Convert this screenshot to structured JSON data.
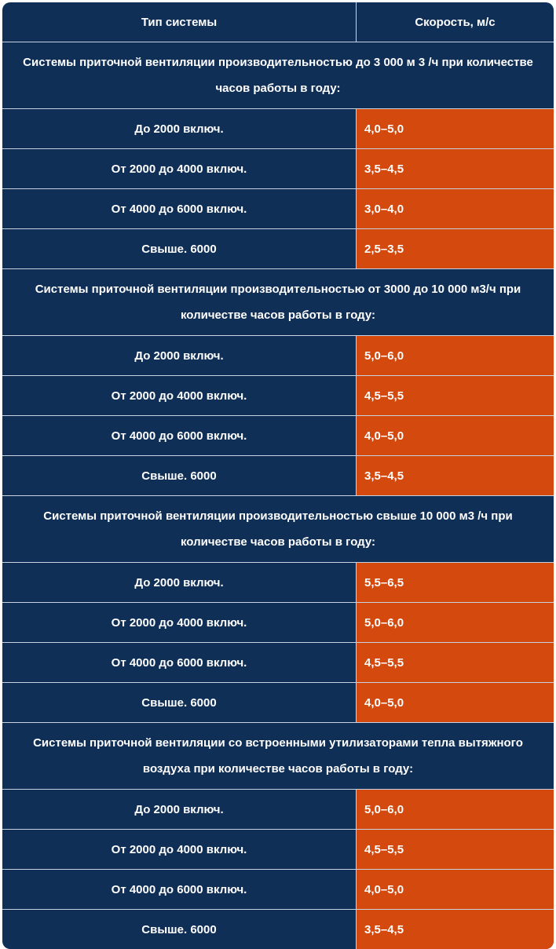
{
  "header": {
    "col1": "Тип системы",
    "col2": "Скорость, м/с"
  },
  "sections": [
    {
      "title": "Системы приточной вентиляции производительностью до 3 000 м 3 /ч при количестве часов работы в году:",
      "rows": [
        {
          "label": "До 2000 включ.",
          "value": "4,0–5,0"
        },
        {
          "label": "От 2000 до 4000 включ.",
          "value": "3,5–4,5"
        },
        {
          "label": "От 4000 до 6000 включ.",
          "value": "3,0–4,0"
        },
        {
          "label": "Свыше. 6000",
          "value": "2,5–3,5"
        }
      ]
    },
    {
      "title": "Системы приточной вентиляции производительностью от 3000 до 10 000 м3/ч при количестве часов работы в году:",
      "rows": [
        {
          "label": "До 2000 включ.",
          "value": "5,0–6,0"
        },
        {
          "label": "От 2000 до 4000 включ.",
          "value": "4,5–5,5"
        },
        {
          "label": "От 4000 до 6000 включ.",
          "value": "4,0–5,0"
        },
        {
          "label": "Свыше. 6000",
          "value": "3,5–4,5"
        }
      ]
    },
    {
      "title": "Системы приточной вентиляции производительностью свыше 10 000 м3 /ч при количестве часов работы в году:",
      "rows": [
        {
          "label": "До 2000 включ.",
          "value": "5,5–6,5"
        },
        {
          "label": "От 2000 до 4000 включ.",
          "value": "5,0–6,0"
        },
        {
          "label": "От 4000 до 6000 включ.",
          "value": "4,5–5,5"
        },
        {
          "label": "Свыше. 6000",
          "value": "4,0–5,0"
        }
      ]
    },
    {
      "title": "Системы приточной вентиляции со встроенными утилизаторами тепла вытяжного воздуха при количестве часов работы в году:",
      "rows": [
        {
          "label": "До 2000 включ.",
          "value": "5,0–6,0"
        },
        {
          "label": "От 2000 до 4000 включ.",
          "value": "4,5–5,5"
        },
        {
          "label": "От 4000 до 6000 включ.",
          "value": "4,0–5,0"
        },
        {
          "label": "Свыше. 6000",
          "value": "3,5–4,5"
        }
      ]
    }
  ]
}
